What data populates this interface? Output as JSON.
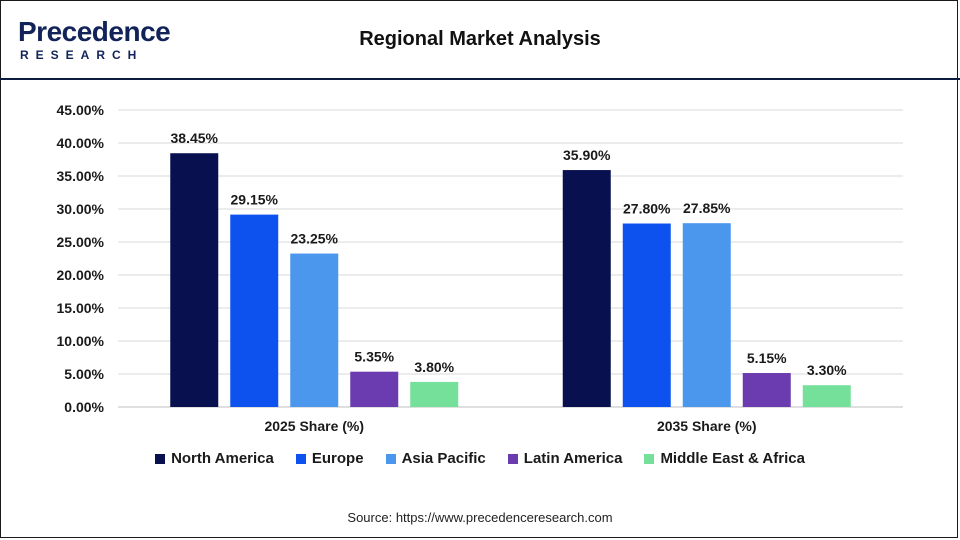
{
  "header": {
    "logo_main": "Precedence",
    "logo_sub": "RESEARCH",
    "title": "Regional Market Analysis"
  },
  "footer": {
    "source": "Source: https://www.precedenceresearch.com"
  },
  "colors": {
    "north_america": "#08104f",
    "europe": "#0d52ee",
    "asia_pacific": "#4b97ee",
    "latin_america": "#6a3cb0",
    "middle_east_africa": "#74e09a"
  },
  "chart_data": {
    "type": "bar",
    "title": "Regional Market Analysis",
    "categories": [
      "2025 Share (%)",
      "2035 Share (%)"
    ],
    "series": [
      {
        "name": "North America",
        "values": [
          38.45,
          35.9
        ],
        "labels": [
          "38.45%",
          "35.90%"
        ],
        "color": "#08104f"
      },
      {
        "name": "Europe",
        "values": [
          29.15,
          27.8
        ],
        "labels": [
          "29.15%",
          "27.80%"
        ],
        "color": "#0d52ee"
      },
      {
        "name": "Asia Pacific",
        "values": [
          23.25,
          27.85
        ],
        "labels": [
          "23.25%",
          "27.85%"
        ],
        "color": "#4b97ee"
      },
      {
        "name": "Latin America",
        "values": [
          5.35,
          5.15
        ],
        "labels": [
          "5.35%",
          "5.15%"
        ],
        "color": "#6a3cb0"
      },
      {
        "name": "Middle East & Africa",
        "values": [
          3.8,
          3.3
        ],
        "labels": [
          "3.80%",
          "3.30%"
        ],
        "color": "#74e09a"
      }
    ],
    "yticks": [
      "0.00%",
      "5.00%",
      "10.00%",
      "15.00%",
      "20.00%",
      "25.00%",
      "30.00%",
      "35.00%",
      "40.00%",
      "45.00%"
    ],
    "ylim": [
      0,
      45
    ],
    "xlabel": "",
    "ylabel": "",
    "grid": true,
    "legend_position": "bottom"
  }
}
